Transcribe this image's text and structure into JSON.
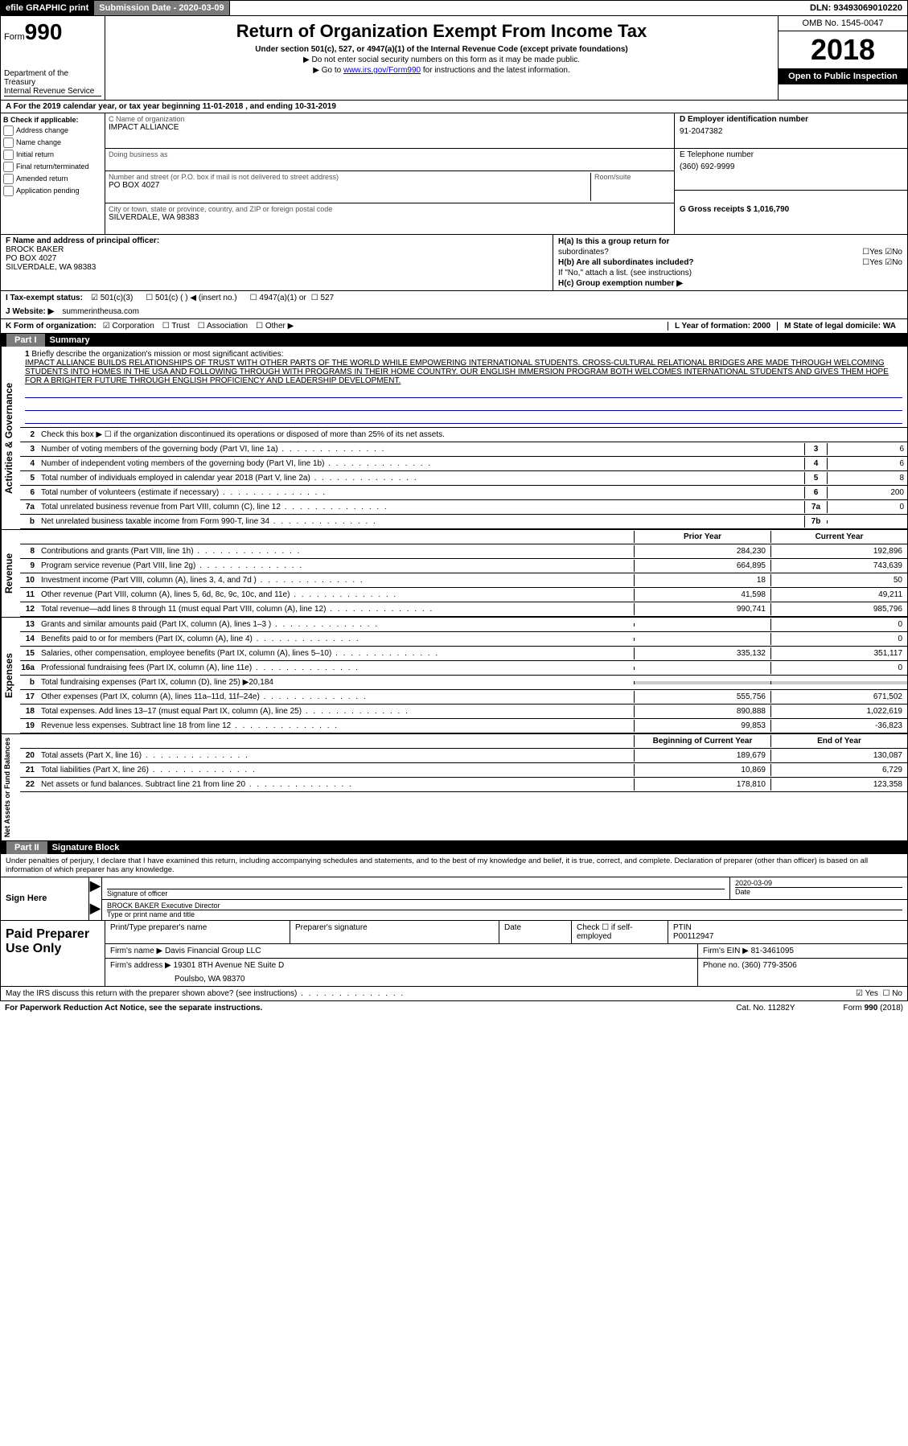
{
  "top": {
    "efile": "efile GRAPHIC print",
    "submission": "Submission Date - 2020-03-09",
    "dln": "DLN: 93493069010220"
  },
  "header": {
    "form_label": "Form",
    "form_num": "990",
    "dept": "Department of the Treasury",
    "irs": "Internal Revenue Service",
    "title": "Return of Organization Exempt From Income Tax",
    "sub": "Under section 501(c), 527, or 4947(a)(1) of the Internal Revenue Code (except private foundations)",
    "note1": "▶ Do not enter social security numbers on this form as it may be made public.",
    "note2_pre": "▶ Go to ",
    "note2_link": "www.irs.gov/Form990",
    "note2_post": " for instructions and the latest information.",
    "omb": "OMB No. 1545-0047",
    "year": "2018",
    "inspect": "Open to Public Inspection"
  },
  "rowA": "A   For the 2019 calendar year, or tax year beginning 11-01-2018           , and ending 10-31-2019",
  "B": {
    "label": "B Check if applicable:",
    "items": [
      "Address change",
      "Name change",
      "Initial return",
      "Final return/terminated",
      "Amended return",
      "Application pending"
    ]
  },
  "C": {
    "name_label": "C Name of organization",
    "name": "IMPACT ALLIANCE",
    "dba_label": "Doing business as",
    "addr_label": "Number and street (or P.O. box if mail is not delivered to street address)",
    "addr": "PO BOX 4027",
    "room_label": "Room/suite",
    "city_label": "City or town, state or province, country, and ZIP or foreign postal code",
    "city": "SILVERDALE, WA  98383"
  },
  "D": {
    "label": "D Employer identification number",
    "val": "91-2047382"
  },
  "E": {
    "label": "E Telephone number",
    "val": "(360) 692-9999"
  },
  "G": {
    "label": "G Gross receipts $ 1,016,790"
  },
  "F": {
    "label": "F  Name and address of principal officer:",
    "name": "BROCK BAKER",
    "addr1": "PO BOX 4027",
    "addr2": "SILVERDALE, WA  98383"
  },
  "H": {
    "a": "H(a)   Is this a group return for",
    "a2": "subordinates?",
    "b": "H(b)   Are all subordinates included?",
    "bnote": "If \"No,\" attach a list. (see instructions)",
    "c": "H(c)   Group exemption number ▶",
    "yes": "Yes",
    "no": "No"
  },
  "I": {
    "label": "I    Tax-exempt status:",
    "opts": [
      "501(c)(3)",
      "501(c) (  ) ◀ (insert no.)",
      "4947(a)(1) or",
      "527"
    ]
  },
  "J": {
    "label": "J   Website: ▶",
    "val": "summerintheusa.com"
  },
  "K": {
    "label": "K Form of organization:",
    "opts": [
      "Corporation",
      "Trust",
      "Association",
      "Other ▶"
    ]
  },
  "L": {
    "label": "L Year of formation: 2000"
  },
  "M": {
    "label": "M State of legal domicile: WA"
  },
  "part1": {
    "num": "Part I",
    "title": "Summary"
  },
  "mission": {
    "n": "1",
    "label": "Briefly describe the organization's mission or most significant activities:",
    "text": "IMPACT ALLIANCE BUILDS RELATIONSHIPS OF TRUST WITH OTHER PARTS OF THE WORLD WHILE EMPOWERING INTERNATIONAL STUDENTS. CROSS-CULTURAL RELATIONAL BRIDGES ARE MADE THROUGH WELCOMING STUDENTS INTO HOMES IN THE USA AND FOLLOWING THROUGH WITH PROGRAMS IN THEIR HOME COUNTRY. OUR ENGLISH IMMERSION PROGRAM BOTH WELCOMES INTERNATIONAL STUDENTS AND GIVES THEM HOPE FOR A BRIGHTER FUTURE THROUGH ENGLISH PROFICIENCY AND LEADERSHIP DEVELOPMENT."
  },
  "gov_side": "Activities & Governance",
  "lines_gov": [
    {
      "n": "2",
      "t": "Check this box ▶ ☐ if the organization discontinued its operations or disposed of more than 25% of its net assets."
    },
    {
      "n": "3",
      "t": "Number of voting members of the governing body (Part VI, line 1a)",
      "bn": "3",
      "bv": "6"
    },
    {
      "n": "4",
      "t": "Number of independent voting members of the governing body (Part VI, line 1b)",
      "bn": "4",
      "bv": "6"
    },
    {
      "n": "5",
      "t": "Total number of individuals employed in calendar year 2018 (Part V, line 2a)",
      "bn": "5",
      "bv": "8"
    },
    {
      "n": "6",
      "t": "Total number of volunteers (estimate if necessary)",
      "bn": "6",
      "bv": "200"
    },
    {
      "n": "7a",
      "t": "Total unrelated business revenue from Part VIII, column (C), line 12",
      "bn": "7a",
      "bv": "0"
    },
    {
      "n": "b",
      "t": "Net unrelated business taxable income from Form 990-T, line 34",
      "bn": "7b",
      "bv": ""
    }
  ],
  "rev_side": "Revenue",
  "col_hdr": {
    "prior": "Prior Year",
    "curr": "Current Year"
  },
  "lines_rev": [
    {
      "n": "8",
      "t": "Contributions and grants (Part VIII, line 1h)",
      "p": "284,230",
      "c": "192,896"
    },
    {
      "n": "9",
      "t": "Program service revenue (Part VIII, line 2g)",
      "p": "664,895",
      "c": "743,639"
    },
    {
      "n": "10",
      "t": "Investment income (Part VIII, column (A), lines 3, 4, and 7d )",
      "p": "18",
      "c": "50"
    },
    {
      "n": "11",
      "t": "Other revenue (Part VIII, column (A), lines 5, 6d, 8c, 9c, 10c, and 11e)",
      "p": "41,598",
      "c": "49,211"
    },
    {
      "n": "12",
      "t": "Total revenue—add lines 8 through 11 (must equal Part VIII, column (A), line 12)",
      "p": "990,741",
      "c": "985,796"
    }
  ],
  "exp_side": "Expenses",
  "lines_exp": [
    {
      "n": "13",
      "t": "Grants and similar amounts paid (Part IX, column (A), lines 1–3 )",
      "p": "",
      "c": "0"
    },
    {
      "n": "14",
      "t": "Benefits paid to or for members (Part IX, column (A), line 4)",
      "p": "",
      "c": "0"
    },
    {
      "n": "15",
      "t": "Salaries, other compensation, employee benefits (Part IX, column (A), lines 5–10)",
      "p": "335,132",
      "c": "351,117"
    },
    {
      "n": "16a",
      "t": "Professional fundraising fees (Part IX, column (A), line 11e)",
      "p": "",
      "c": "0"
    },
    {
      "n": "b",
      "t": "Total fundraising expenses (Part IX, column (D), line 25) ▶20,184",
      "shade": true
    },
    {
      "n": "17",
      "t": "Other expenses (Part IX, column (A), lines 11a–11d, 11f–24e)",
      "p": "555,756",
      "c": "671,502"
    },
    {
      "n": "18",
      "t": "Total expenses. Add lines 13–17 (must equal Part IX, column (A), line 25)",
      "p": "890,888",
      "c": "1,022,619"
    },
    {
      "n": "19",
      "t": "Revenue less expenses. Subtract line 18 from line 12",
      "p": "99,853",
      "c": "-36,823"
    }
  ],
  "net_side": "Net Assets or Fund Balances",
  "col_hdr2": {
    "prior": "Beginning of Current Year",
    "curr": "End of Year"
  },
  "lines_net": [
    {
      "n": "20",
      "t": "Total assets (Part X, line 16)",
      "p": "189,679",
      "c": "130,087"
    },
    {
      "n": "21",
      "t": "Total liabilities (Part X, line 26)",
      "p": "10,869",
      "c": "6,729"
    },
    {
      "n": "22",
      "t": "Net assets or fund balances. Subtract line 21 from line 20",
      "p": "178,810",
      "c": "123,358"
    }
  ],
  "part2": {
    "num": "Part II",
    "title": "Signature Block"
  },
  "sig_intro": "Under penalties of perjury, I declare that I have examined this return, including accompanying schedules and statements, and to the best of my knowledge and belief, it is true, correct, and complete. Declaration of preparer (other than officer) is based on all information of which preparer has any knowledge.",
  "sign": {
    "here": "Sign Here",
    "sig_label": "Signature of officer",
    "date_label": "Date",
    "date": "2020-03-09",
    "name": "BROCK BAKER  Executive Director",
    "name_label": "Type or print name and title"
  },
  "prep": {
    "label": "Paid Preparer Use Only",
    "r1": {
      "c1": "Print/Type preparer's name",
      "c2": "Preparer's signature",
      "c3": "Date",
      "c4": "Check ☐ if self-employed",
      "c5": "PTIN",
      "c5v": "P00112947"
    },
    "r2": {
      "c1": "Firm's name    ▶ Davis Financial Group LLC",
      "c2": "Firm's EIN ▶ 81-3461095"
    },
    "r3": {
      "c1": "Firm's address ▶ 19301 8TH Avenue NE Suite D",
      "c2": "Phone no. (360) 779-3506"
    },
    "r3b": "Poulsbo, WA  98370"
  },
  "discuss": {
    "t": "May the IRS discuss this return with the preparer shown above? (see instructions)",
    "yes": "Yes",
    "no": "No"
  },
  "footer": {
    "l": "For Paperwork Reduction Act Notice, see the separate instructions.",
    "m": "Cat. No. 11282Y",
    "r": "Form 990 (2018)"
  }
}
